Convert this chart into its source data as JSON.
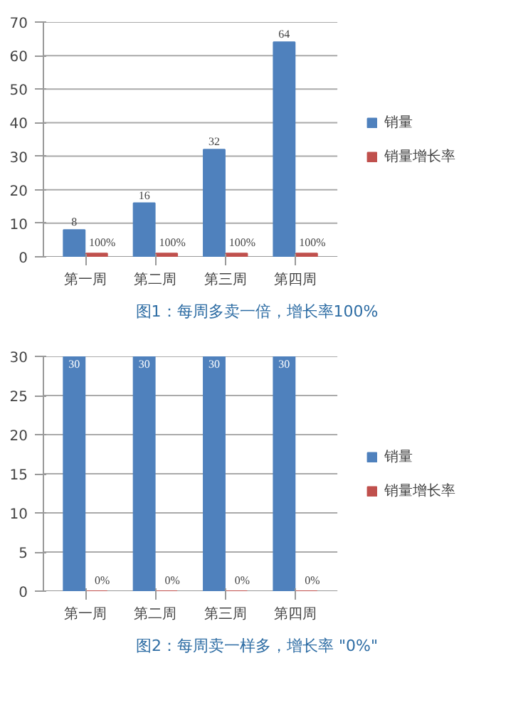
{
  "chart_data": [
    {
      "type": "bar",
      "categories": [
        "第一周",
        "第二周",
        "第三周",
        "第四周"
      ],
      "ylim": [
        0,
        70
      ],
      "yticks": [
        0,
        10,
        20,
        30,
        40,
        50,
        60,
        70
      ],
      "grid": "y",
      "legend": "right",
      "annotations": [
        "图1：每周多卖一倍，增长率100%"
      ],
      "series": [
        {
          "name": "销量",
          "color": "#4f81bd",
          "values": [
            8,
            16,
            32,
            64
          ],
          "value_labels": [
            "8",
            "16",
            "32",
            "64"
          ]
        },
        {
          "name": "销量增长率",
          "color": "#c0504d",
          "values": [
            1,
            1,
            1,
            1
          ],
          "value_labels": [
            "100%",
            "100%",
            "100%",
            "100%"
          ]
        }
      ]
    },
    {
      "type": "bar",
      "categories": [
        "第一周",
        "第二周",
        "第三周",
        "第四周"
      ],
      "ylim": [
        0,
        30
      ],
      "yticks": [
        0,
        5,
        10,
        15,
        20,
        25,
        30
      ],
      "grid": "y",
      "legend": "right",
      "annotations": [
        "图2：每周卖一样多，增长率 \"0%\""
      ],
      "series": [
        {
          "name": "销量",
          "color": "#4f81bd",
          "values": [
            30,
            30,
            30,
            30
          ],
          "value_labels": [
            "30",
            "30",
            "30",
            "30"
          ]
        },
        {
          "name": "销量增长率",
          "color": "#c0504d",
          "values": [
            0,
            0,
            0,
            0
          ],
          "value_labels": [
            "0%",
            "0%",
            "0%",
            "0%"
          ]
        }
      ]
    }
  ]
}
